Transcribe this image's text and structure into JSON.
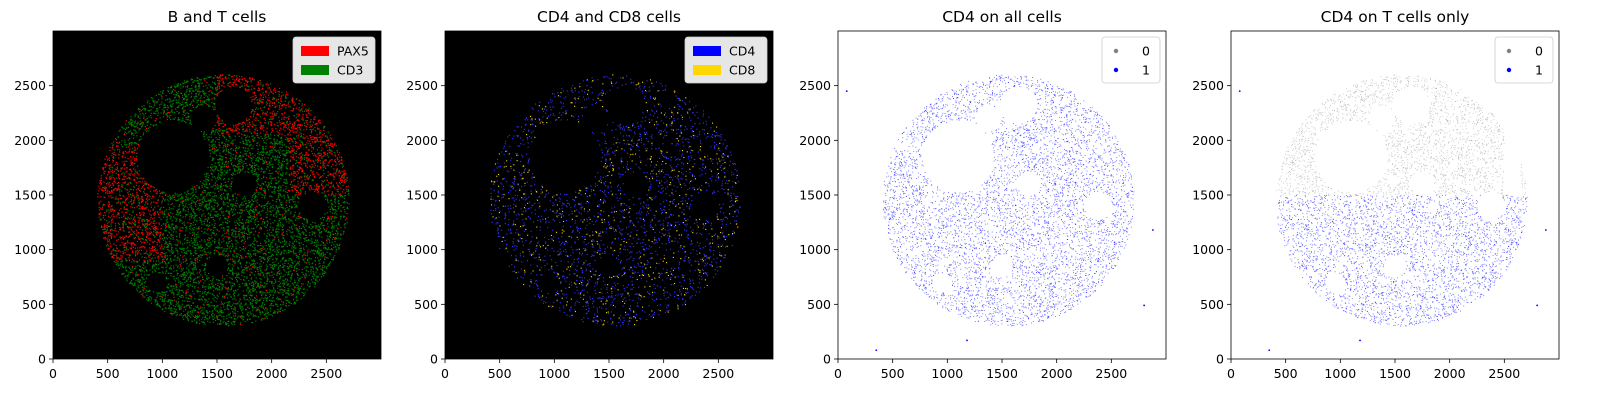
{
  "chart_data": [
    {
      "type": "scatter",
      "title": "B and T cells",
      "background": "#000000",
      "xlim": [
        0,
        3000
      ],
      "ylim": [
        0,
        3000
      ],
      "xticks": [
        0,
        500,
        1000,
        1500,
        2000,
        2500
      ],
      "yticks": [
        0,
        500,
        1000,
        1500,
        2000,
        2500
      ],
      "legend": {
        "placement": "top-right",
        "style": "patch",
        "entries": [
          {
            "label": "PAX5",
            "color": "#ff0000"
          },
          {
            "label": "CD3",
            "color": "#008000"
          }
        ]
      },
      "tissue": {
        "center": [
          1560,
          1450
        ],
        "radius": 1150
      },
      "mode": "bt"
    },
    {
      "type": "scatter",
      "title": "CD4 and CD8 cells",
      "background": "#000000",
      "xlim": [
        0,
        3000
      ],
      "ylim": [
        0,
        3000
      ],
      "xticks": [
        0,
        500,
        1000,
        1500,
        2000,
        2500
      ],
      "yticks": [
        0,
        500,
        1000,
        1500,
        2000,
        2500
      ],
      "legend": {
        "placement": "top-right",
        "style": "patch",
        "entries": [
          {
            "label": "CD4",
            "color": "#0000ff"
          },
          {
            "label": "CD8",
            "color": "#ffd700"
          }
        ]
      },
      "tissue": {
        "center": [
          1560,
          1450
        ],
        "radius": 1150
      },
      "mode": "cd48"
    },
    {
      "type": "scatter",
      "title": "CD4 on all cells",
      "background": "#ffffff",
      "xlim": [
        0,
        3000
      ],
      "ylim": [
        0,
        3000
      ],
      "xticks": [
        0,
        500,
        1000,
        1500,
        2000,
        2500
      ],
      "yticks": [
        0,
        500,
        1000,
        1500,
        2000,
        2500
      ],
      "legend": {
        "placement": "top-right",
        "style": "marker",
        "entries": [
          {
            "label": "0",
            "color": "#808080"
          },
          {
            "label": "1",
            "color": "#0000ff"
          }
        ]
      },
      "tissue": {
        "center": [
          1560,
          1450
        ],
        "radius": 1150
      },
      "outliers": [
        [
          80,
          2450
        ],
        [
          350,
          80
        ],
        [
          1180,
          170
        ],
        [
          2800,
          490
        ],
        [
          2880,
          1180
        ]
      ],
      "mode": "all"
    },
    {
      "type": "scatter",
      "title": "CD4 on T cells only",
      "background": "#ffffff",
      "xlim": [
        0,
        3000
      ],
      "ylim": [
        0,
        3000
      ],
      "xticks": [
        0,
        500,
        1000,
        1500,
        2000,
        2500
      ],
      "yticks": [
        0,
        500,
        1000,
        1500,
        2000,
        2500
      ],
      "legend": {
        "placement": "top-right",
        "style": "marker",
        "entries": [
          {
            "label": "0",
            "color": "#808080"
          },
          {
            "label": "1",
            "color": "#0000ff"
          }
        ]
      },
      "tissue": {
        "center": [
          1560,
          1450
        ],
        "radius": 1150
      },
      "split_y": 1500,
      "outliers": [
        [
          80,
          2450
        ],
        [
          350,
          80
        ],
        [
          1180,
          170
        ],
        [
          2800,
          490
        ],
        [
          2880,
          1180
        ]
      ],
      "mode": "split"
    }
  ]
}
